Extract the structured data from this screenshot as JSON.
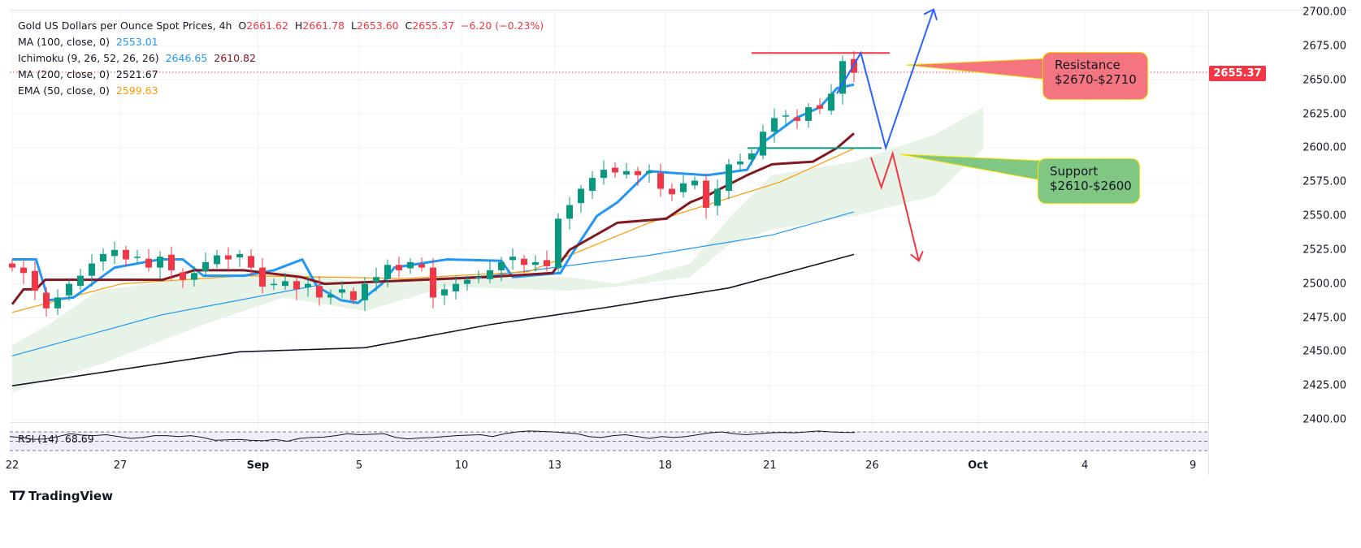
{
  "legend": {
    "title": "Gold US Dollars per Ounce Spot Prices, 4h",
    "o_label": "O",
    "o": "2661.62",
    "h_label": "H",
    "h": "2661.78",
    "l_label": "L",
    "l": "2653.60",
    "c_label": "C",
    "c": "2655.37",
    "change": "−6.20 (−0.23%)",
    "ma100_label": "MA (100, close, 0)",
    "ma100": "2553.01",
    "ichimoku_label": "Ichimoku (9, 26, 52, 26, 26)",
    "ichimoku_conv": "2646.65",
    "ichimoku_base": "2610.82",
    "ma200_label": "MA (200, close, 0)",
    "ma200": "2521.67",
    "ema50_label": "EMA (50, close, 0)",
    "ema50": "2599.63"
  },
  "price_tag": "2655.37",
  "annotations": {
    "resistance_title": "Resistance",
    "resistance_range": "$2670-$2710",
    "support_title": "Support",
    "support_range": "$2610-$2600",
    "resistance_level": 2670,
    "support_level": 2600
  },
  "rsi": {
    "label": "RSI (14)",
    "value": "68.69",
    "values": [
      60,
      58,
      54,
      55,
      60,
      66,
      63,
      62,
      64,
      60,
      56,
      58,
      62,
      62,
      60,
      62,
      58,
      52,
      53,
      54,
      52,
      51,
      54,
      50,
      56,
      58,
      59,
      62,
      66,
      64,
      65,
      66,
      58,
      55,
      57,
      58,
      60,
      62,
      63,
      64,
      60,
      66,
      70,
      72,
      71,
      70,
      68,
      66,
      60,
      58,
      62,
      64,
      60,
      56,
      60,
      58,
      60,
      64,
      68,
      70,
      66,
      64,
      66,
      68,
      69,
      68,
      70,
      72,
      70,
      69,
      68.69
    ]
  },
  "brand": "TradingView",
  "chart_data": {
    "type": "candlestick",
    "title": "Gold US Dollars per Ounce Spot Prices, 4h",
    "ylim": [
      2400,
      2700
    ],
    "yticks": [
      "2700.00",
      "2675.00",
      "2650.00",
      "2625.00",
      "2600.00",
      "2575.00",
      "2550.00",
      "2525.00",
      "2500.00",
      "2475.00",
      "2450.00",
      "2425.00",
      "2400.00"
    ],
    "xticks": [
      {
        "label": "22",
        "bar": 0.5,
        "bold": false
      },
      {
        "label": "27",
        "bar": 10,
        "bold": false
      },
      {
        "label": "Sep",
        "bar": 22.1,
        "bold": true
      },
      {
        "label": "5",
        "bar": 31,
        "bold": false
      },
      {
        "label": "10",
        "bar": 40,
        "bold": false
      },
      {
        "label": "13",
        "bar": 48.2,
        "bold": false
      },
      {
        "label": "18",
        "bar": 57.9,
        "bold": false
      },
      {
        "label": "21",
        "bar": 67.1,
        "bold": false
      },
      {
        "label": "26",
        "bar": 76.1,
        "bold": false
      },
      {
        "label": "Oct",
        "bar": 85.4,
        "bold": true
      },
      {
        "label": "4",
        "bar": 94.8,
        "bold": false
      },
      {
        "label": "9",
        "bar": 104.3,
        "bold": false
      }
    ],
    "close": [
      2512,
      2508,
      2495,
      2482,
      2490,
      2500,
      2506,
      2515,
      2522,
      2525,
      2518,
      2520,
      2512,
      2520,
      2510,
      2503,
      2508,
      2516,
      2521,
      2518,
      2522,
      2512,
      2498,
      2500,
      2502,
      2496,
      2500,
      2490,
      2492,
      2496,
      2488,
      2500,
      2505,
      2514,
      2510,
      2516,
      2512,
      2490,
      2496,
      2500,
      2503,
      2505,
      2510,
      2516,
      2520,
      2514,
      2516,
      2513,
      2548,
      2558,
      2570,
      2578,
      2584,
      2582,
      2583,
      2580,
      2583,
      2570,
      2566,
      2574,
      2576,
      2556,
      2570,
      2588,
      2590,
      2596,
      2612,
      2622,
      2624,
      2620,
      2630,
      2629,
      2640,
      2664,
      2655.37
    ],
    "series": [
      {
        "name": "MA (200, close, 0)",
        "color": "#131722",
        "width": 1.6,
        "points": [
          [
            0,
            2425
          ],
          [
            20,
            2450
          ],
          [
            31,
            2453
          ],
          [
            42,
            2470
          ],
          [
            52.5,
            2483
          ],
          [
            63,
            2497
          ],
          [
            74,
            2521.67
          ]
        ]
      },
      {
        "name": "MA (100, close, 0)",
        "color": "#2196f3",
        "width": 1.2,
        "points": [
          [
            0,
            2447
          ],
          [
            13,
            2477
          ],
          [
            27.5,
            2500
          ],
          [
            42,
            2506
          ],
          [
            56,
            2521
          ],
          [
            66.8,
            2536
          ],
          [
            74,
            2553.01
          ]
        ]
      },
      {
        "name": "EMA (50, close, 0)",
        "color": "#ff9800",
        "width": 1.2,
        "points": [
          [
            0,
            2479
          ],
          [
            9.6,
            2500
          ],
          [
            20.4,
            2506
          ],
          [
            34.6,
            2504
          ],
          [
            45.4,
            2509
          ],
          [
            49,
            2521
          ],
          [
            56,
            2545
          ],
          [
            61.8,
            2560
          ],
          [
            67.5,
            2575
          ],
          [
            74,
            2599.63
          ]
        ]
      },
      {
        "name": "Ichimoku Conversion",
        "color": "#2196f3",
        "width": 3,
        "points": [
          [
            0,
            2518
          ],
          [
            2.1,
            2518
          ],
          [
            3.2,
            2488
          ],
          [
            5.4,
            2490
          ],
          [
            9,
            2512
          ],
          [
            13,
            2518
          ],
          [
            15,
            2518
          ],
          [
            16.8,
            2506
          ],
          [
            20.4,
            2506
          ],
          [
            23,
            2510
          ],
          [
            25.5,
            2518
          ],
          [
            26.8,
            2498
          ],
          [
            28.9,
            2488
          ],
          [
            30.4,
            2486
          ],
          [
            32.5,
            2500
          ],
          [
            33.6,
            2512
          ],
          [
            38.2,
            2518
          ],
          [
            43,
            2517
          ],
          [
            44,
            2505
          ],
          [
            48.2,
            2508
          ],
          [
            49.2,
            2522
          ],
          [
            51.4,
            2550
          ],
          [
            53.2,
            2560
          ],
          [
            56,
            2583
          ],
          [
            57.5,
            2582
          ],
          [
            61.1,
            2580
          ],
          [
            64.6,
            2584
          ],
          [
            66,
            2604
          ],
          [
            68.9,
            2622
          ],
          [
            71,
            2630
          ],
          [
            72.5,
            2644
          ],
          [
            74,
            2646.65
          ]
        ]
      },
      {
        "name": "Ichimoku Base",
        "color": "#801922",
        "width": 3,
        "points": [
          [
            0,
            2485
          ],
          [
            1,
            2496
          ],
          [
            2.1,
            2496
          ],
          [
            2.9,
            2503
          ],
          [
            13.2,
            2503
          ],
          [
            16,
            2510
          ],
          [
            20.4,
            2510
          ],
          [
            25.4,
            2505
          ],
          [
            27.5,
            2500
          ],
          [
            41.8,
            2505
          ],
          [
            47.5,
            2508
          ],
          [
            49,
            2525
          ],
          [
            53.2,
            2545
          ],
          [
            57.5,
            2548
          ],
          [
            59.6,
            2560
          ],
          [
            61.1,
            2565
          ],
          [
            64.6,
            2580
          ],
          [
            66.8,
            2588
          ],
          [
            70.4,
            2590
          ],
          [
            72.5,
            2600
          ],
          [
            74,
            2610.82
          ]
        ]
      }
    ],
    "cloud": {
      "color": "#e8f3e8",
      "upper": [
        [
          0,
          2455
        ],
        [
          3.2,
          2470
        ],
        [
          7.5,
          2495
        ],
        [
          16.8,
          2505
        ],
        [
          23.9,
          2510
        ],
        [
          31,
          2500
        ],
        [
          38.2,
          2505
        ],
        [
          48.9,
          2505
        ],
        [
          53.2,
          2500
        ],
        [
          59.6,
          2515
        ],
        [
          63.2,
          2550
        ],
        [
          66.8,
          2580
        ],
        [
          74,
          2590
        ],
        [
          81.1,
          2610
        ],
        [
          85.4,
          2630
        ]
      ],
      "lower": [
        [
          0,
          2420
        ],
        [
          3.2,
          2430
        ],
        [
          7.5,
          2440
        ],
        [
          16.8,
          2470
        ],
        [
          23.9,
          2490
        ],
        [
          31,
          2480
        ],
        [
          38.2,
          2498
        ],
        [
          48.9,
          2495
        ],
        [
          53.2,
          2498
        ],
        [
          59.6,
          2505
        ],
        [
          63.2,
          2530
        ],
        [
          66.8,
          2540
        ],
        [
          74,
          2550
        ],
        [
          81.1,
          2565
        ],
        [
          85.4,
          2600
        ]
      ]
    },
    "projection_up": [
      [
        72.5,
        2640
      ],
      [
        74.6,
        2670
      ],
      [
        76.8,
        2600
      ],
      [
        81,
        2702
      ]
    ],
    "projection_down": [
      [
        75.5,
        2593
      ],
      [
        76.4,
        2571
      ],
      [
        77.4,
        2596
      ],
      [
        79.7,
        2517
      ]
    ]
  }
}
